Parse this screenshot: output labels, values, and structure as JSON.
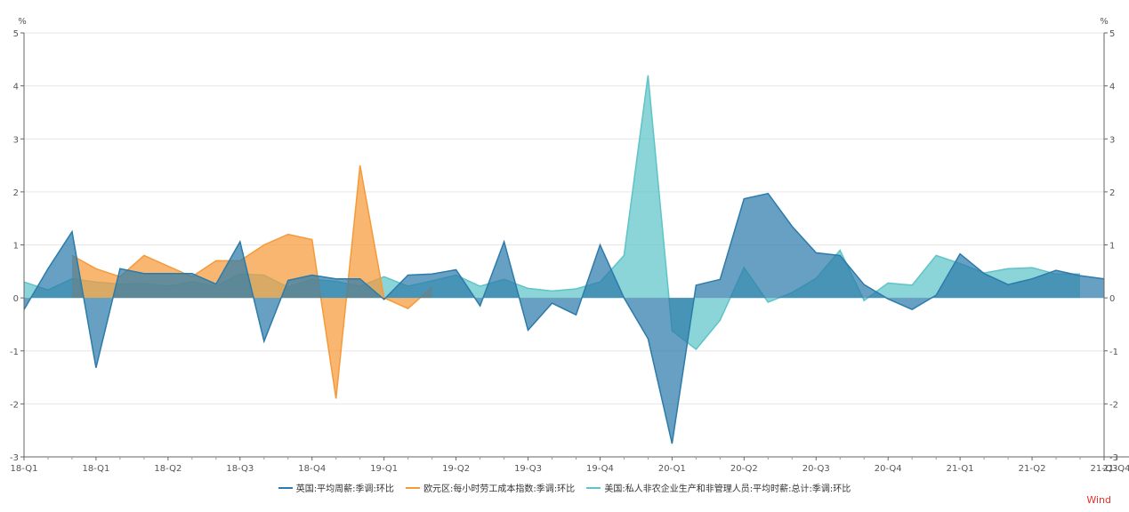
{
  "chart_data": {
    "type": "area",
    "title": "",
    "ylabel_left": "%",
    "ylabel_right": "%",
    "ylim": [
      -3,
      5
    ],
    "yticks": [
      -3,
      -2,
      -1,
      0,
      1,
      2,
      3,
      4,
      5
    ],
    "x_tick_labels": [
      "18-Q1",
      "18-Q1",
      "18-Q2",
      "18-Q3",
      "18-Q4",
      "19-Q1",
      "19-Q2",
      "19-Q3",
      "19-Q4",
      "20-Q1",
      "20-Q2",
      "20-Q3",
      "20-Q4",
      "21-Q1",
      "21-Q2",
      "21-Q3",
      "21-Q4"
    ],
    "legend_position": "bottom-center",
    "series": [
      {
        "name": "美国:私人非农企业生产和非管理人员:平均时薪:总计:季调:环比",
        "color": "#5ec4c7",
        "t_start": 0,
        "values": [
          0.3,
          0.15,
          0.36,
          0.3,
          0.26,
          0.27,
          0.22,
          0.3,
          0.22,
          0.45,
          0.43,
          0.2,
          0.35,
          0.31,
          0.22,
          0.4,
          0.22,
          0.32,
          0.43,
          0.22,
          0.35,
          0.18,
          0.13,
          0.17,
          0.3,
          0.8,
          4.2,
          -0.62,
          -0.97,
          -0.42,
          0.57,
          -0.08,
          0.1,
          0.37,
          0.9,
          -0.05,
          0.28,
          0.24,
          0.8,
          0.65,
          0.47,
          0.55,
          0.57,
          0.45,
          0.45
        ]
      },
      {
        "name": "欧元区:每小时劳工成本指数:季调:环比",
        "color": "#f59a3a",
        "t_start": 2,
        "values": [
          0.8,
          0.55,
          0.4,
          0.8,
          0.6,
          0.4,
          0.7,
          0.7,
          1.0,
          1.2,
          1.1,
          -1.9,
          2.5,
          0.0,
          -0.2,
          0.2
        ]
      },
      {
        "name": "英国:平均周薪:季调:环比",
        "color": "#2c7bab",
        "t_start": 0,
        "values": [
          -0.22,
          0.55,
          1.25,
          -1.32,
          0.55,
          0.46,
          0.46,
          0.46,
          0.26,
          1.06,
          -0.82,
          0.33,
          0.43,
          0.36,
          0.36,
          -0.03,
          0.43,
          0.45,
          0.53,
          -0.15,
          1.06,
          -0.61,
          -0.1,
          -0.32,
          1.0,
          0.0,
          -0.77,
          -2.75,
          0.24,
          0.35,
          1.87,
          1.97,
          1.35,
          0.85,
          0.8,
          0.25,
          -0.02,
          -0.22,
          0.05,
          0.83,
          0.46,
          0.25,
          0.36,
          0.52,
          0.42,
          0.36
        ]
      }
    ],
    "legend_order": [
      "英国:平均周薪:季调:环比",
      "欧元区:每小时劳工成本指数:季调:环比",
      "美国:私人非农企业生产和非管理人员:平均时薪:总计:季调:环比"
    ]
  },
  "legend": [
    {
      "label": "英国:平均周薪:季调:环比",
      "color": "#2c7bab"
    },
    {
      "label": "欧元区:每小时劳工成本指数:季调:环比",
      "color": "#f59a3a"
    },
    {
      "label": "美国:私人非农企业生产和非管理人员:平均时薪:总计:季调:环比",
      "color": "#5ec4c7"
    }
  ],
  "brand": "Wind"
}
